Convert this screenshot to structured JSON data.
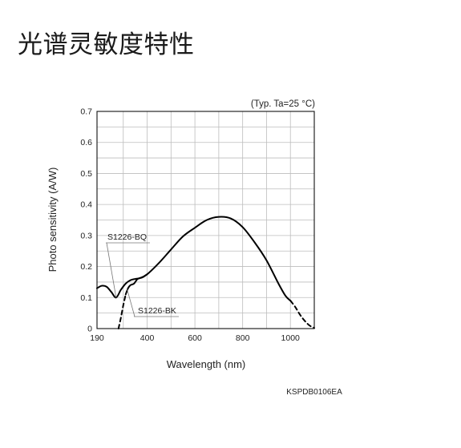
{
  "page": {
    "heading": "光谱灵敏度特性"
  },
  "chart_data": {
    "type": "line",
    "title": "",
    "condition_note": "(Typ. Ta=25 °C)",
    "xlabel": "Wavelength (nm)",
    "ylabel": "Photo sensitivity (A/W)",
    "xlim": [
      190,
      1100
    ],
    "ylim": [
      0,
      0.7
    ],
    "grid": true,
    "x_ticks": [
      190,
      400,
      600,
      800,
      1000
    ],
    "x_tick_labels": [
      "190",
      "400",
      "600",
      "800",
      "1000"
    ],
    "y_ticks": [
      0,
      0.1,
      0.2,
      0.3,
      0.4,
      0.5,
      0.6,
      0.7
    ],
    "y_tick_labels": [
      "0",
      "0.1",
      "0.2",
      "0.3",
      "0.4",
      "0.5",
      "0.6",
      "0.7"
    ],
    "code": "KSPDB0106EA",
    "series": [
      {
        "name": "S1226-BQ",
        "style": "solid",
        "x": [
          190,
          210,
          230,
          250,
          270,
          290,
          310,
          330,
          350,
          370,
          400,
          450,
          500,
          550,
          600,
          650,
          700,
          750,
          800,
          850,
          900,
          950,
          980,
          1000
        ],
        "y": [
          0.13,
          0.138,
          0.135,
          0.118,
          0.1,
          0.125,
          0.145,
          0.156,
          0.16,
          0.163,
          0.175,
          0.212,
          0.255,
          0.297,
          0.325,
          0.35,
          0.36,
          0.355,
          0.327,
          0.278,
          0.22,
          0.145,
          0.105,
          0.09
        ]
      },
      {
        "name": "S1226-BK",
        "style": "solid",
        "x": [
          310,
          320,
          330,
          345,
          360,
          380,
          400
        ],
        "y": [
          0.11,
          0.13,
          0.14,
          0.145,
          0.16,
          0.165,
          0.175
        ]
      },
      {
        "name": "S1226-BK",
        "style": "dashed",
        "x": [
          280,
          290,
          300,
          310
        ],
        "y": [
          0.0,
          0.035,
          0.075,
          0.11
        ]
      },
      {
        "name": "",
        "style": "dashed",
        "x": [
          1000,
          1020,
          1040,
          1060,
          1080,
          1100
        ],
        "y": [
          0.09,
          0.07,
          0.045,
          0.025,
          0.01,
          0.002
        ]
      }
    ],
    "annotations": [
      {
        "text": "S1226-BQ",
        "target_x": 270,
        "target_y": 0.1
      },
      {
        "text": "S1226-BK",
        "target_x": 315,
        "target_y": 0.13
      }
    ]
  }
}
